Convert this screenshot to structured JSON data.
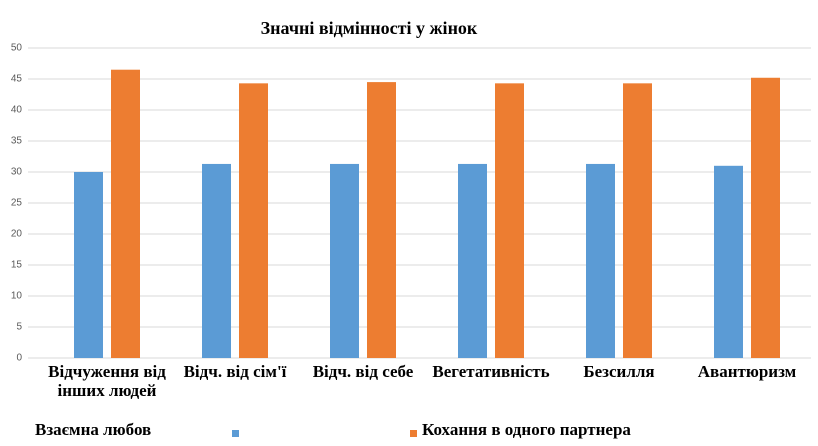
{
  "chart_data": {
    "type": "bar",
    "title": "Значні відмінності у жінок",
    "categories": [
      "Відчуження від інших людей",
      "Відч. від сім'ї",
      "Відч. від себе",
      "Вегетативність",
      "Безсилля",
      "Авантюризм"
    ],
    "series": [
      {
        "name": "Взаємна любов",
        "color": "#5b9bd5",
        "values": [
          30,
          31.3,
          31.3,
          31.3,
          31.3,
          31
        ]
      },
      {
        "name": "Кохання в одного партнера",
        "color": "#ed7d31",
        "values": [
          46.5,
          44.3,
          44.5,
          44.3,
          44.3,
          45.2
        ]
      }
    ],
    "ylim": [
      0,
      50
    ],
    "yticks": [
      0,
      5,
      10,
      15,
      20,
      25,
      30,
      35,
      40,
      45,
      50
    ],
    "grid": true
  }
}
